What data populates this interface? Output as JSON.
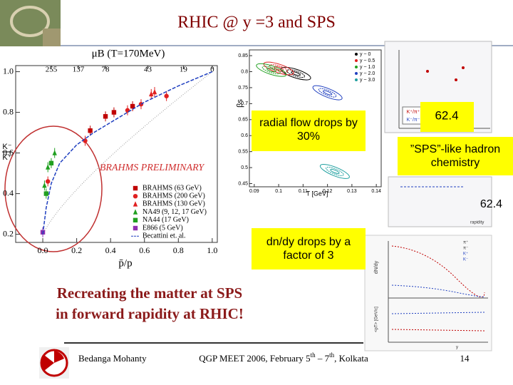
{
  "header": {
    "title": "RHIC @ y =3 and SPS"
  },
  "chart_data": [
    {
      "type": "scatter",
      "x_label": "p̄/p",
      "y_label_top": "K⁻",
      "y_label_bottom": "K⁺",
      "x2_label": "μB (T=170MeV)",
      "annotation": "BRAHMS PRELIMINARY",
      "xlim": [
        -0.16,
        1.03
      ],
      "ylim": [
        0.16,
        1.03
      ],
      "xticks": [
        {
          "value": 0,
          "label": "0.0"
        },
        {
          "value": 0.2,
          "label": "0.2"
        },
        {
          "value": 0.4,
          "label": "0.4"
        },
        {
          "value": 0.6,
          "label": "0.6"
        },
        {
          "value": 0.8,
          "label": "0.8"
        },
        {
          "value": 1,
          "label": "1.0"
        }
      ],
      "yticks": [
        {
          "value": 0.2,
          "label": "0.2"
        },
        {
          "value": 0.4,
          "label": "0.4"
        },
        {
          "value": 0.6,
          "label": "0.6"
        },
        {
          "value": 0.8,
          "label": "0.8"
        },
        {
          "value": 1,
          "label": "1.0"
        }
      ],
      "x2ticks": [
        {
          "value": 0.05,
          "label": "255"
        },
        {
          "value": 0.21,
          "label": "137"
        },
        {
          "value": 0.37,
          "label": "78"
        },
        {
          "value": 0.62,
          "label": "43"
        },
        {
          "value": 0.83,
          "label": "19"
        },
        {
          "value": 1,
          "label": "0"
        }
      ],
      "series": [
        {
          "name": "BRAHMS (63 GeV)",
          "color": "#c00000",
          "marker": "square",
          "x": [
            0.28,
            0.37,
            0.42,
            0.53
          ],
          "values": [
            0.71,
            0.78,
            0.8,
            0.83
          ]
        },
        {
          "name": "BRAHMS (200 GeV)",
          "color": "#e02020",
          "marker": "circle",
          "x": [
            0.03,
            0.25,
            0.5,
            0.58,
            0.73
          ],
          "values": [
            0.46,
            0.66,
            0.81,
            0.84,
            0.88
          ]
        },
        {
          "name": "BRAHMS (130 GeV)",
          "color": "#e02020",
          "marker": "triangle",
          "x": [
            0.64,
            0.66
          ],
          "values": [
            0.89,
            0.9
          ]
        },
        {
          "name": "NA49 (9, 12, 17 GeV)",
          "color": "#20a020",
          "marker": "triangle",
          "x": [
            0.01,
            0.03,
            0.07
          ],
          "values": [
            0.44,
            0.53,
            0.6
          ]
        },
        {
          "name": "NA44 (17 GeV)",
          "color": "#20a020",
          "marker": "square",
          "x": [
            0.02,
            0.05
          ],
          "values": [
            0.4,
            0.55
          ]
        },
        {
          "name": "E866 (5 GeV)",
          "color": "#9030b0",
          "marker": "square",
          "x": [
            0.0
          ],
          "values": [
            0.21
          ]
        },
        {
          "name": "Becattini et. al.",
          "color": "#2040c0",
          "marker": "line",
          "x": [
            0,
            0.02,
            0.05,
            0.1,
            0.2,
            0.3,
            0.4,
            0.6,
            0.8,
            1.0
          ],
          "values": [
            0.2,
            0.33,
            0.45,
            0.55,
            0.64,
            0.7,
            0.75,
            0.85,
            0.93,
            1.0
          ]
        }
      ]
    },
    {
      "type": "contour",
      "x_label": "T [GeV]",
      "y_label": "βs",
      "xlim": [
        0.088,
        0.142
      ],
      "ylim": [
        0.44,
        0.868
      ],
      "xticks": [
        0.09,
        0.1,
        0.11,
        0.12,
        0.13,
        0.14
      ],
      "yticks": [
        0.45,
        0.5,
        0.55,
        0.6,
        0.65,
        0.7,
        0.75,
        0.8,
        0.85
      ],
      "series": [
        {
          "name": "y ~ 0",
          "color": "#000000",
          "x": [
            0.107
          ],
          "values": [
            0.794
          ]
        },
        {
          "name": "y ~ 0.5",
          "color": "#e02020",
          "x": [
            0.1
          ],
          "values": [
            0.81
          ]
        },
        {
          "name": "y ~ 1.0",
          "color": "#20a020",
          "x": [
            0.097
          ],
          "values": [
            0.805
          ]
        },
        {
          "name": "y ~ 2.0",
          "color": "#2040c0",
          "x": [
            0.12
          ],
          "values": [
            0.734
          ]
        },
        {
          "name": "y ~ 3.0",
          "color": "#20a0a0",
          "x": [
            0.123
          ],
          "values": [
            0.488
          ]
        }
      ]
    }
  ],
  "notes": {
    "flow": "radial flow drops by 30%",
    "energy1": "62.4",
    "chemistry": "”SPS”-like hadron chemistry",
    "energy2": "62.4",
    "dndy": "dn/dy drops by a factor of 3"
  },
  "insets": {
    "ratio_legend": [
      "K⁺/π⁺",
      "K⁻/π⁻"
    ],
    "ratio_x_label": "rapidity",
    "spectra_y_label": "dN/dy",
    "spectra_pt_label": "<pT> [GeV/c]",
    "spectra_legend": [
      "π⁺",
      "π⁻",
      "K⁺",
      "K⁻"
    ],
    "spectra_x_label": "y"
  },
  "body": {
    "line1": "Recreating the matter at SPS",
    "line2": "in forward rapidity at RHIC!"
  },
  "footer": {
    "author": "Bedanga Mohanty",
    "event_parts": [
      "QGP MEET 2006, February 5",
      "th",
      " – 7",
      "th",
      ", Kolkata"
    ],
    "page": "14"
  }
}
